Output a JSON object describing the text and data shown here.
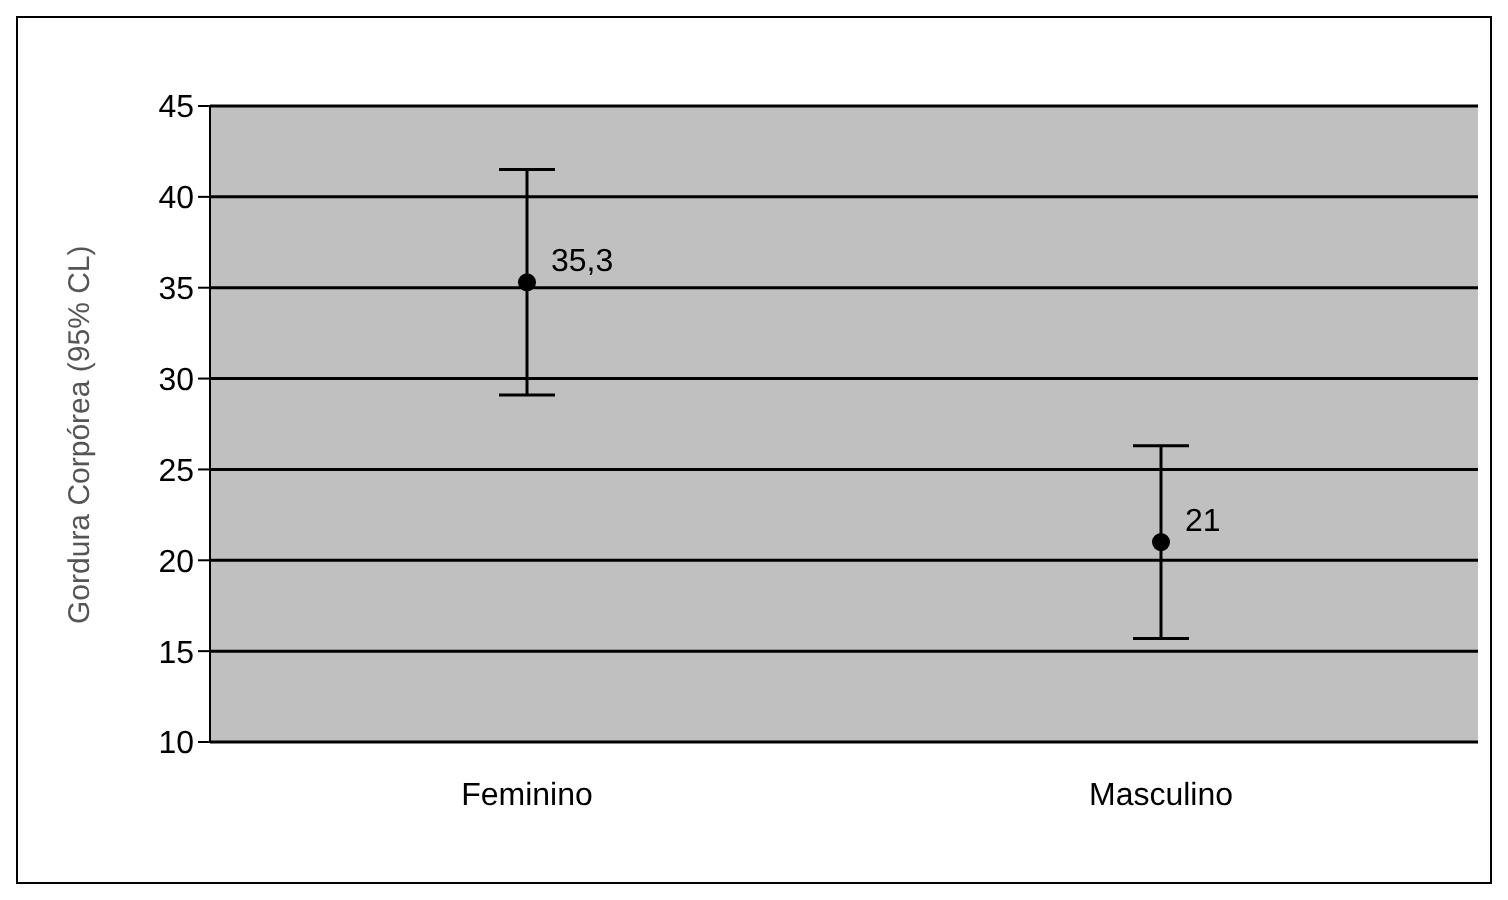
{
  "chart_data": {
    "type": "scatter",
    "ylabel": "Gordura Corpórea (95% CL)",
    "categories": [
      "Feminino",
      "Masculino"
    ],
    "series": [
      {
        "color": "#000000",
        "values": [
          35.3,
          21
        ],
        "errors": [
          6.2,
          5.3
        ],
        "value_labels": [
          "35,3",
          "21"
        ]
      }
    ],
    "ylim": [
      10,
      45
    ],
    "yticks": [
      10,
      15,
      20,
      25,
      30,
      35,
      40,
      45
    ],
    "grid": "y",
    "marker": "circle"
  }
}
